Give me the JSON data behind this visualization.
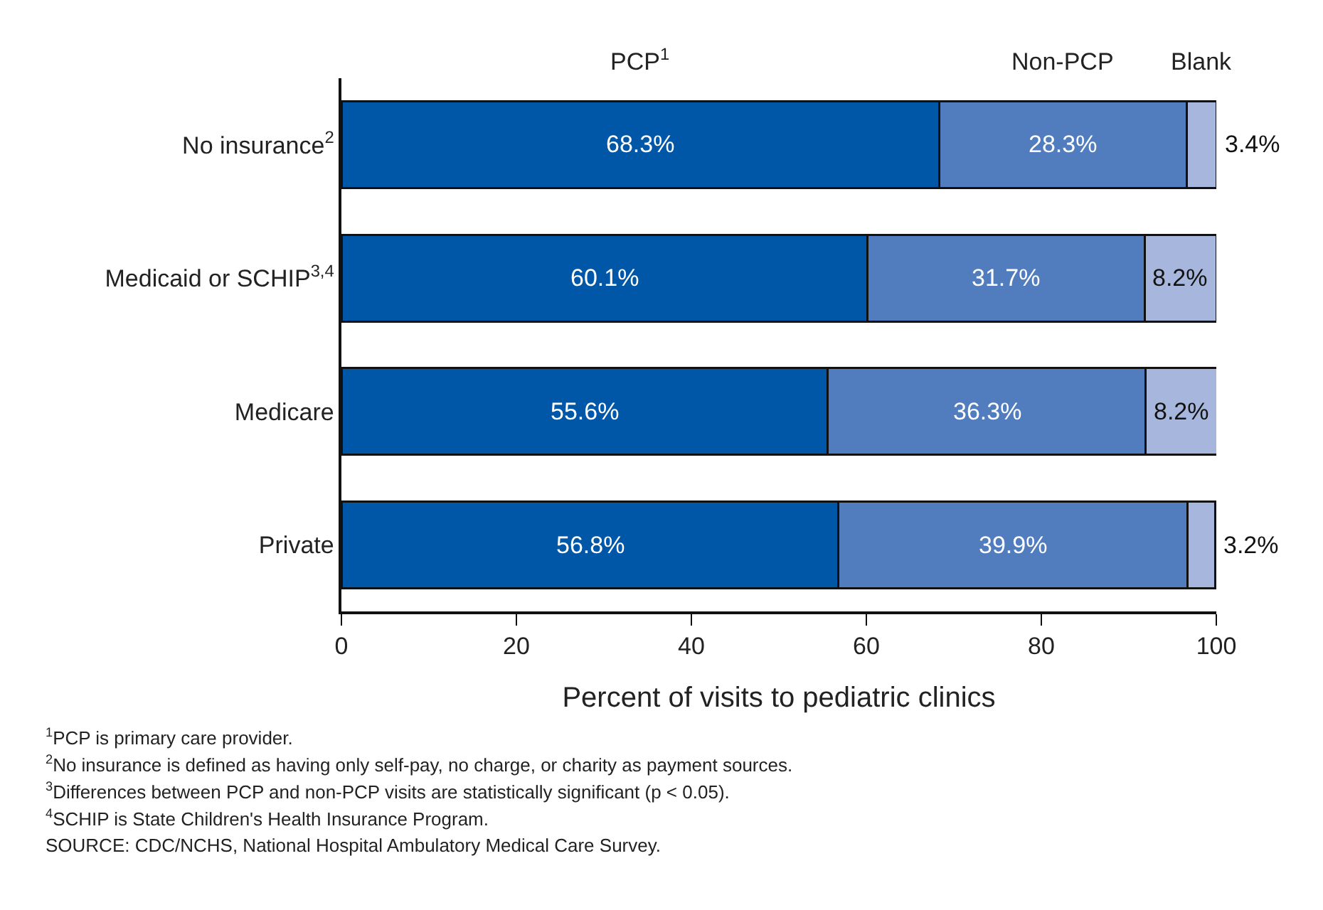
{
  "chart_data": {
    "type": "bar",
    "orientation": "horizontal",
    "stacked": true,
    "legend": false,
    "categories": [
      "No insurance$^{2}$",
      "Medicaid or SCHIP$^{3,4}$",
      "Medicare",
      "Private"
    ],
    "series": [
      {
        "name": "PCP$^{1}$",
        "color": "#0057a8",
        "values": [
          68.3,
          60.1,
          55.6,
          56.8
        ],
        "value_labels": [
          "68.3%",
          "60.1%",
          "55.6%",
          "56.8%"
        ]
      },
      {
        "name": "Non-PCP",
        "color": "#517cbe",
        "values": [
          28.3,
          31.7,
          36.3,
          39.9
        ],
        "value_labels": [
          "28.3%",
          "31.7%",
          "36.3%",
          "39.9%"
        ]
      },
      {
        "name": "Blank",
        "color": "#a7b6dc",
        "values": [
          3.4,
          8.2,
          8.2,
          3.2
        ],
        "value_labels": [
          "3.4%",
          "8.2%",
          "8.2%",
          "3.2%"
        ]
      }
    ],
    "xlabel": "Percent of visits to pediatric clinics",
    "xlim": [
      0,
      100
    ],
    "xticks": [
      0,
      20,
      40,
      60,
      80,
      100
    ],
    "annotations": [
      "$^{1}$PCP is primary care provider.",
      "$^{2}$No insurance is defined as having only self-pay, no charge, or charity as payment sources.",
      "$^{3}$Differences between PCP and non-PCP visits are statistically significant (p < 0.05).",
      "$^{4}$SCHIP is State Children's Health Insurance Program.",
      "SOURCE: CDC/NCHS, National Hospital Ambulatory Medical Care Survey."
    ]
  }
}
